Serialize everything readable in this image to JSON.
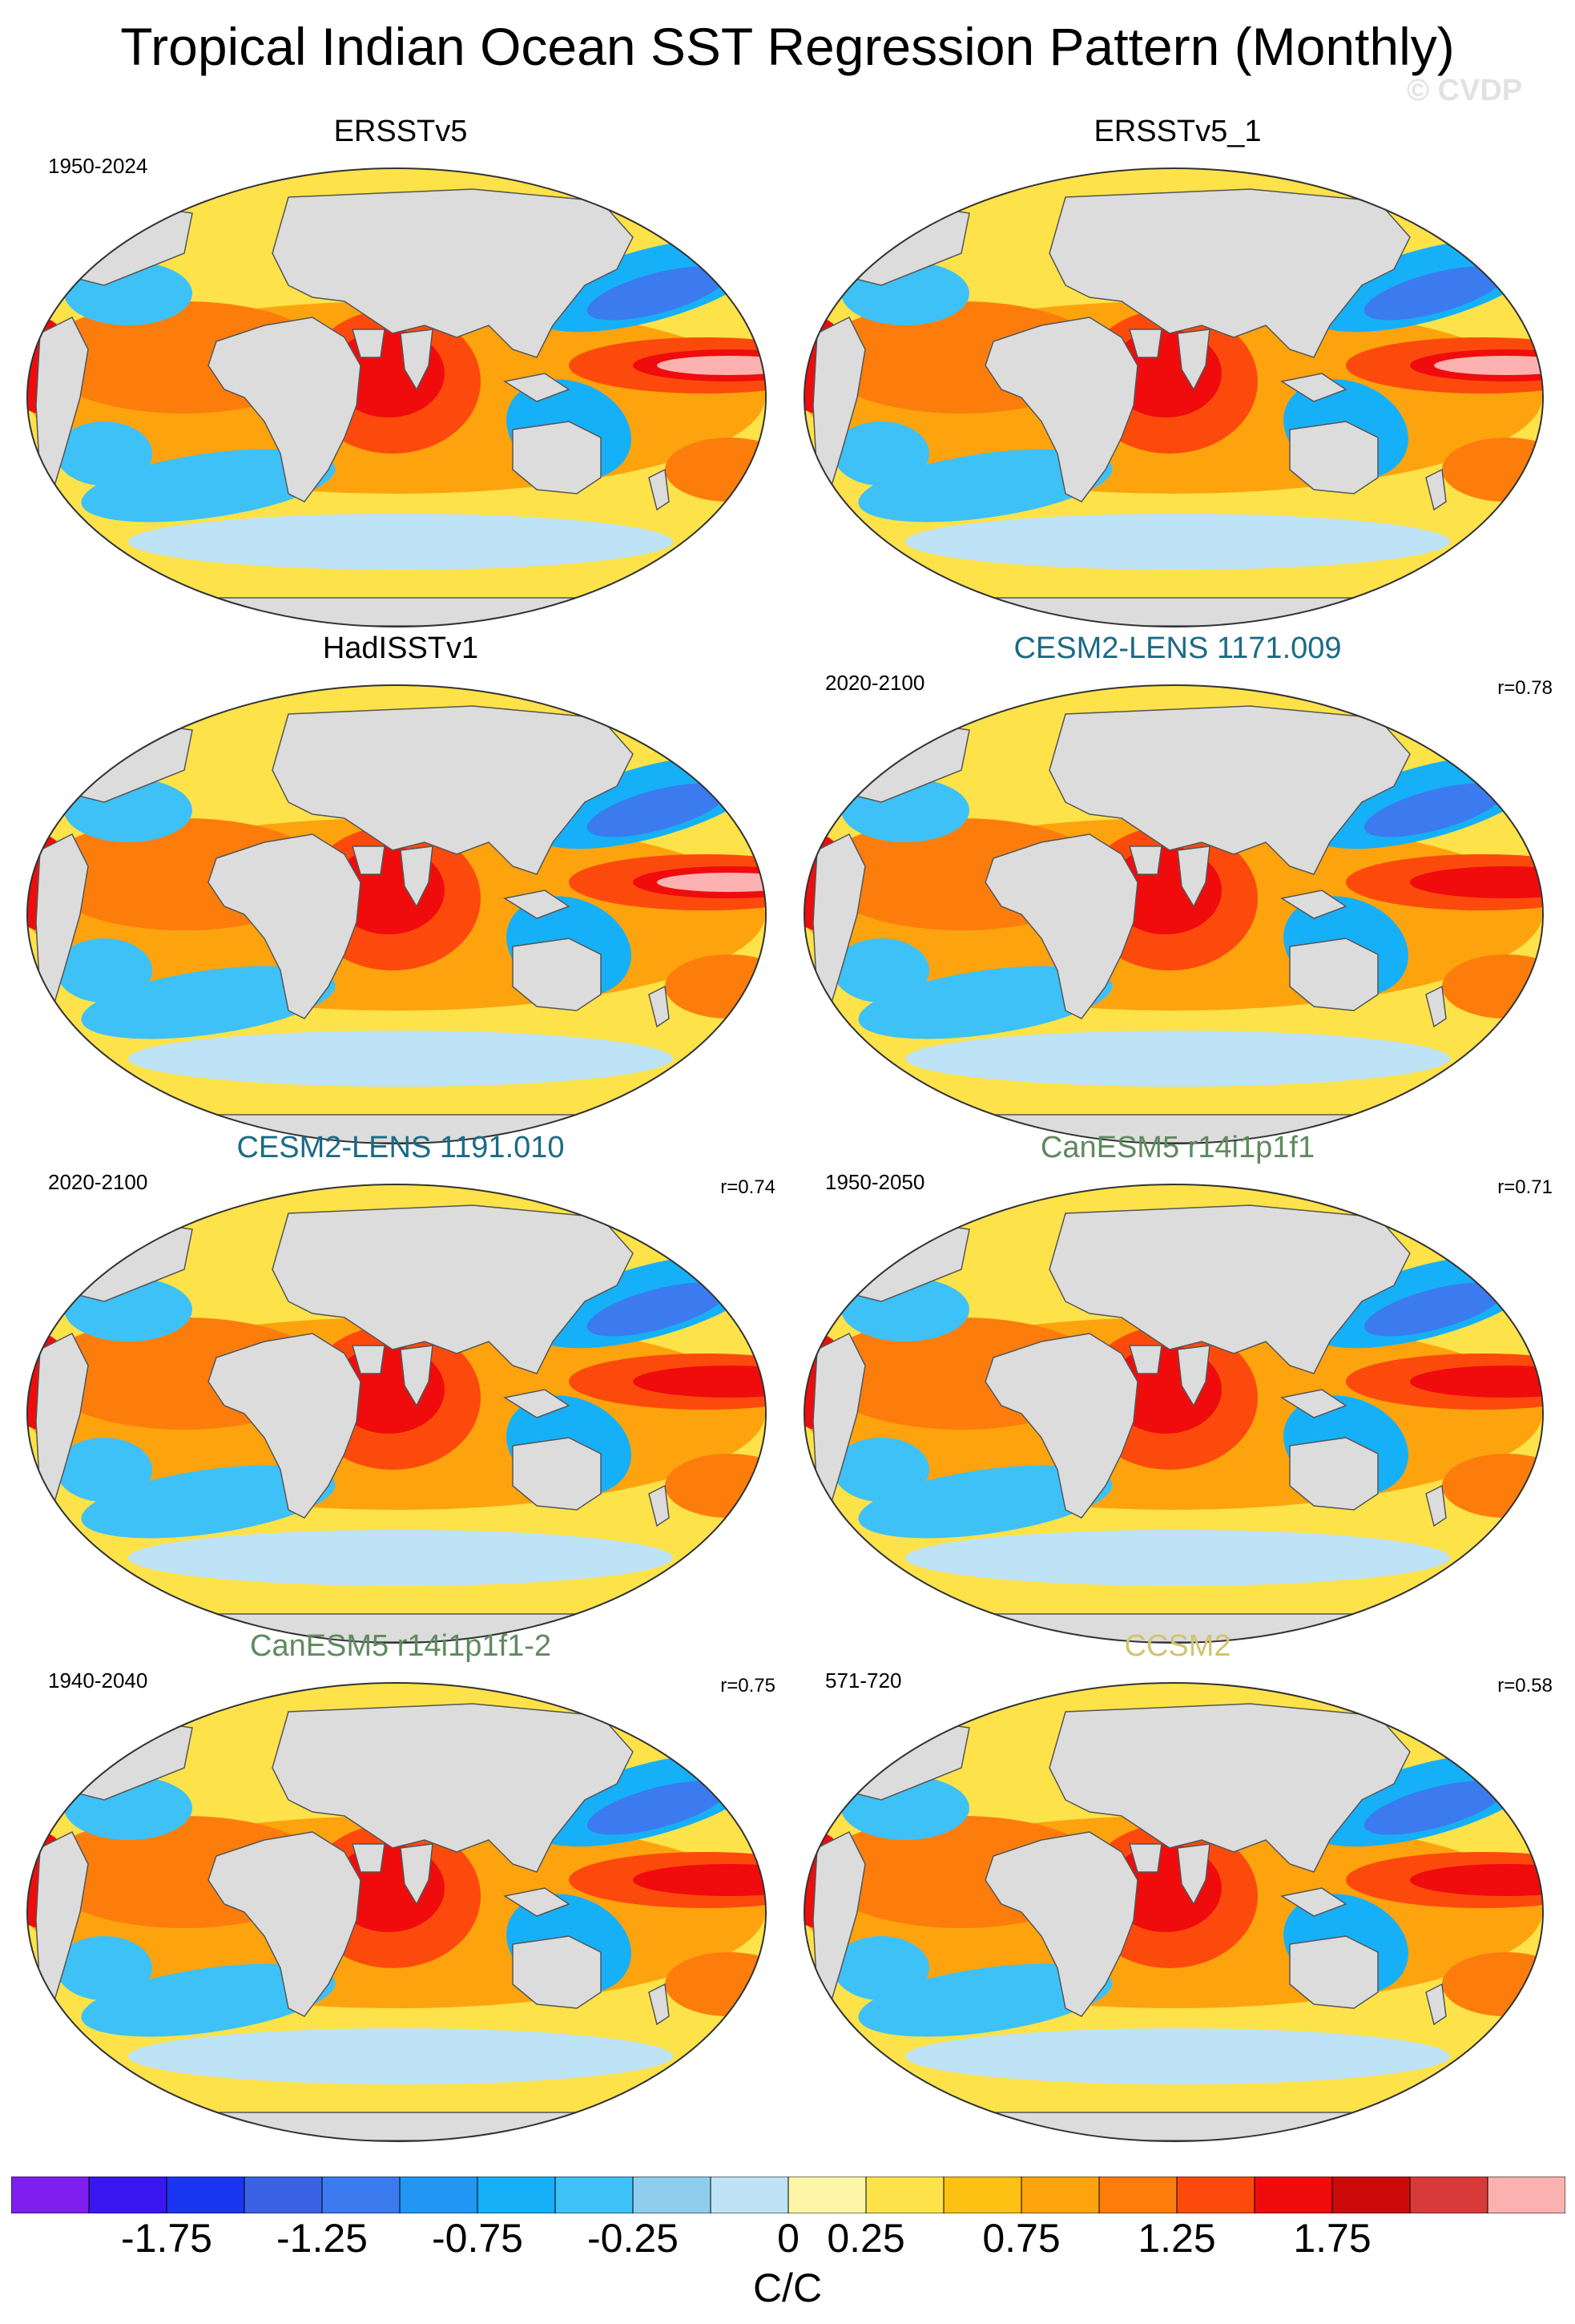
{
  "title": "Tropical Indian Ocean SST Regression Pattern (Monthly)",
  "watermark": "© CVDP",
  "panels": [
    {
      "name": "ERSSTv5",
      "period": "1950-2024",
      "corr": "",
      "title_color": "#000000"
    },
    {
      "name": "ERSSTv5_1",
      "period": "",
      "corr": "",
      "title_color": "#000000"
    },
    {
      "name": "HadISSTv1",
      "period": "",
      "corr": "",
      "title_color": "#000000"
    },
    {
      "name": "CESM2-LENS 1171.009",
      "period": "2020-2100",
      "corr": "r=0.78",
      "title_color": "#1a6b86"
    },
    {
      "name": "CESM2-LENS 1191.010",
      "period": "2020-2100",
      "corr": "r=0.74",
      "title_color": "#1a6b86"
    },
    {
      "name": "CanESM5 r14i1p1f1",
      "period": "1950-2050",
      "corr": "r=0.71",
      "title_color": "#5f8a5f"
    },
    {
      "name": "CanESM5 r14i1p1f1-2",
      "period": "1940-2040",
      "corr": "r=0.75",
      "title_color": "#5f8a5f"
    },
    {
      "name": "CCSM2",
      "period": "571-720",
      "corr": "r=0.58",
      "title_color": "#d2c46e"
    }
  ],
  "colorbar": {
    "units": "C/C",
    "labels": [
      "-1.75",
      "-1.25",
      "-0.75",
      "-0.25",
      "0",
      "0.25",
      "0.75",
      "1.25",
      "1.75"
    ],
    "colors": [
      "#7e1ff0",
      "#3a16f0",
      "#1a36f0",
      "#3a62e2",
      "#3b7bef",
      "#2196f3",
      "#16b0f8",
      "#3ec1f6",
      "#8fcdee",
      "#bee3f7",
      "#fdf6a6",
      "#fde24a",
      "#fdc114",
      "#fda30e",
      "#fd7d0c",
      "#fc4a0c",
      "#f00c0c",
      "#cc0a0a",
      "#d83a3a",
      "#fcb1b1"
    ]
  }
}
